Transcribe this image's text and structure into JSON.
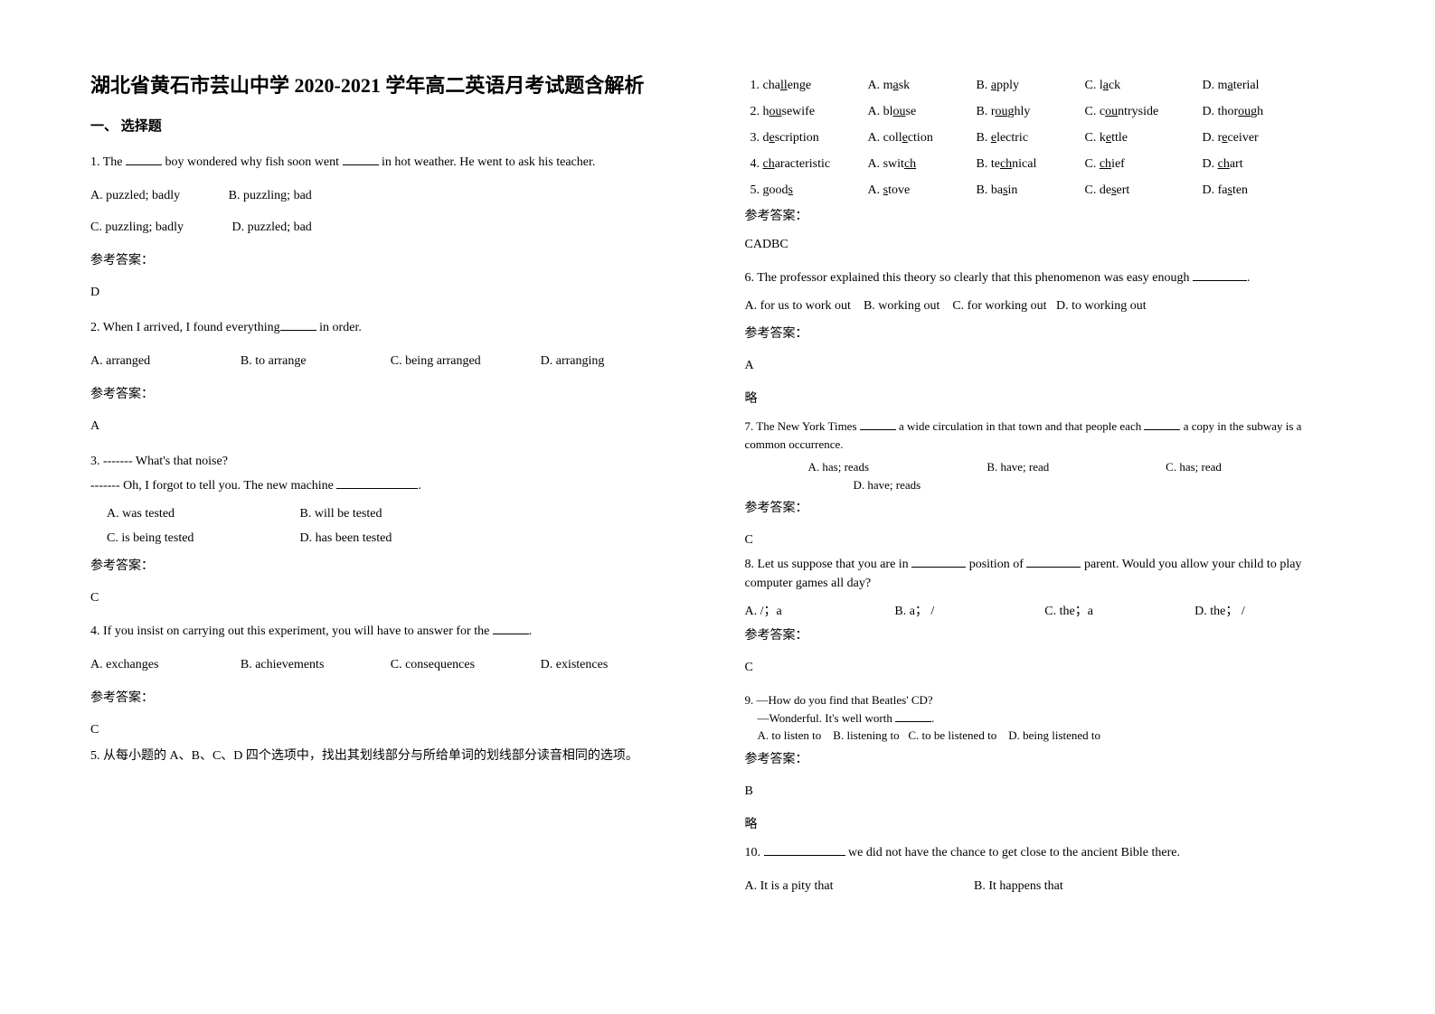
{
  "meta": {
    "text_color": "#000000",
    "background_color": "#ffffff",
    "title_fontsize": 22,
    "body_fontsize": 14,
    "font_family": "SimSun"
  },
  "title": "湖北省黄石市芸山中学 2020-2021 学年高二英语月考试题含解析",
  "section1_heading": "一、 选择题",
  "q1": {
    "text_a": "1. The ",
    "text_b": " boy wondered why fish soon went ",
    "text_c": " in hot weather. He went to ask his teacher.",
    "optA": "A. puzzled; badly",
    "optB": "B. puzzling; bad",
    "optC": "C. puzzling; badly",
    "optD": "D. puzzled; bad",
    "answer_label": "参考答案：",
    "answer": "D"
  },
  "q2": {
    "text_a": "2. When I arrived, I found everything",
    "text_b": " in order.",
    "optA": "A. arranged",
    "optB": "B. to arrange",
    "optC": "C. being arranged",
    "optD": "D. arranging",
    "answer_label": "参考答案：",
    "answer": "A"
  },
  "q3": {
    "line1": "3.  ------- What's that noise?",
    "line2_a": "------- Oh, I forgot to tell you. The new machine ",
    "line2_b": ".",
    "optA": "A. was tested",
    "optB": "B. will be tested",
    "optC": "C. is being tested",
    "optD": "D. has been tested",
    "answer_label": "参考答案：",
    "answer": "C"
  },
  "q4": {
    "text_a": "4. If you insist on carrying out this experiment, you will have to answer for the ",
    "text_b": ".",
    "optA": "A. exchanges",
    "optB": "B. achievements",
    "optC": "C. consequences",
    "optD": "D. existences",
    "answer_label": "参考答案：",
    "answer": "C"
  },
  "q5": {
    "instr": "5. 从每小题的 A、B、C、D 四个选项中，找出其划线部分与所给单词的划线部分读音相同的选项。",
    "rows": [
      {
        "w": {
          "pre": "1. cha",
          "u": "ll",
          "post": "enge"
        },
        "A": {
          "pre": "A. m",
          "u": "a",
          "post": "sk"
        },
        "B": {
          "pre": "B. ",
          "u": "a",
          "post": "pply"
        },
        "C": {
          "pre": "C. l",
          "u": "a",
          "post": "ck"
        },
        "D": {
          "pre": "D. m",
          "u": "a",
          "post": "terial"
        }
      },
      {
        "w": {
          "pre": "2. h",
          "u": "ou",
          "post": "sewife"
        },
        "A": {
          "pre": "A. bl",
          "u": "ou",
          "post": "se"
        },
        "B": {
          "pre": "B. r",
          "u": "ou",
          "post": "ghly"
        },
        "C": {
          "pre": "C. c",
          "u": "ou",
          "post": "ntryside"
        },
        "D": {
          "pre": "D. thor",
          "u": "ou",
          "post": "gh"
        }
      },
      {
        "w": {
          "pre": "3. d",
          "u": "e",
          "post": "scription"
        },
        "A": {
          "pre": "A. coll",
          "u": "e",
          "post": "ction"
        },
        "B": {
          "pre": "B. ",
          "u": "e",
          "post": "lectric"
        },
        "C": {
          "pre": "C. k",
          "u": "e",
          "post": "ttle"
        },
        "D": {
          "pre": "D. r",
          "u": "e",
          "post": "ceiver"
        }
      },
      {
        "w": {
          "pre": "4. ",
          "u": "ch",
          "post": "aracteristic"
        },
        "A": {
          "pre": "A. swit",
          "u": "ch",
          "post": ""
        },
        "B": {
          "pre": "B. te",
          "u": "ch",
          "post": "nical"
        },
        "C": {
          "pre": "C. ",
          "u": "ch",
          "post": "ief"
        },
        "D": {
          "pre": "D. ",
          "u": "ch",
          "post": "art"
        }
      },
      {
        "w": {
          "pre": "5. good",
          "u": "s",
          "post": ""
        },
        "A": {
          "pre": "A. ",
          "u": "s",
          "post": "tove"
        },
        "B": {
          "pre": "B. ba",
          "u": "s",
          "post": "in"
        },
        "C": {
          "pre": "C. de",
          "u": "s",
          "post": "ert"
        },
        "D": {
          "pre": "D. fa",
          "u": "s",
          "post": "ten"
        }
      }
    ],
    "answer_label": "参考答案：",
    "answer": "CADBC"
  },
  "q6": {
    "text_a": "6. The professor explained this theory so clearly that this phenomenon was easy enough ",
    "text_b": ".",
    "optA": "A. for us to work out",
    "optB": "B. working out",
    "optC": "C. for working out",
    "optD": "D. to working out",
    "answer_label": "参考答案：",
    "answer": "A",
    "note": "略"
  },
  "q7": {
    "text_a": "7. The New York Times ",
    "text_b": " a wide circulation in that town and that people each ",
    "text_c": " a copy in the subway is a common occurrence.",
    "optA": "A. has; reads",
    "optB": "B. have; read",
    "optC": "C. has; read",
    "optD": "D. have; reads",
    "answer_label": "参考答案：",
    "answer": "C"
  },
  "q8": {
    "text_a": "8.  Let us suppose that you are in ",
    "text_b": " position of ",
    "text_c": " parent. Would you allow your child to play computer games all day?",
    "optA": "A. /；a",
    "optB": "B. a； /",
    "optC": "C. the；a",
    "optD": "D. the； /",
    "answer_label": "参考答案：",
    "answer": "C"
  },
  "q9": {
    "line1": "9. —How do you find that Beatles' CD?",
    "line2_a": "—Wonderful. It's well worth ",
    "line2_b": ".",
    "optA": "A. to listen to",
    "optB": "B. listening to",
    "optC": "C. to be listened to",
    "optD": "D. being listened to",
    "answer_label": "参考答案：",
    "answer": "B",
    "note": "略"
  },
  "q10": {
    "text_a": "10. ",
    "text_b": " we did not have the chance to get close to the ancient Bible there.",
    "optA": "A. It is a pity that",
    "optB": "B. It happens that"
  }
}
